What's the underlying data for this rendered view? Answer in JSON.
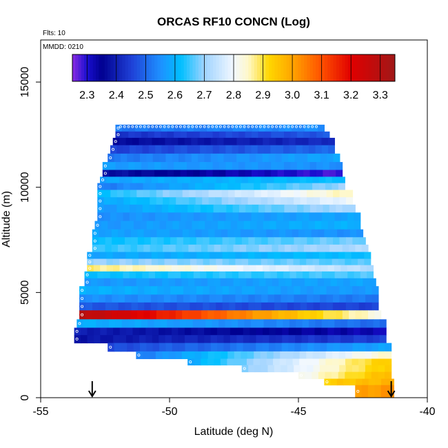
{
  "chart_data": {
    "type": "heatmap",
    "title": "ORCAS RF10 CONCN (Log)",
    "flights_note": "Flts: 10",
    "date_note": "MMDD: 0210",
    "xlabel": "Latitude (deg N)",
    "ylabel": "Altitude (m)",
    "xlim": [
      -55,
      -40
    ],
    "ylim": [
      0,
      17000
    ],
    "xticks": [
      -55,
      -50,
      -45,
      -40
    ],
    "yticks": [
      0,
      5000,
      10000,
      15000
    ],
    "xtick_labels": [
      "-55",
      "-50",
      "-45",
      "-40"
    ],
    "ytick_labels": [
      "0",
      "5000",
      "10000",
      "15000"
    ],
    "colorbar": {
      "min": 2.25,
      "max": 3.35,
      "ticks": [
        2.3,
        2.4,
        2.5,
        2.6,
        2.7,
        2.8,
        2.9,
        3.0,
        3.1,
        3.2,
        3.3
      ],
      "tick_labels": [
        "2.3",
        "2.4",
        "2.5",
        "2.6",
        "2.7",
        "2.8",
        "2.9",
        "3.0",
        "3.1",
        "3.2",
        "3.3"
      ],
      "stops": [
        {
          "v": 2.25,
          "color": "#8a2be2"
        },
        {
          "v": 2.3,
          "color": "#1a0fd0"
        },
        {
          "v": 2.35,
          "color": "#000090"
        },
        {
          "v": 2.45,
          "color": "#1f3fd6"
        },
        {
          "v": 2.55,
          "color": "#1e90ff"
        },
        {
          "v": 2.62,
          "color": "#00bfff"
        },
        {
          "v": 2.7,
          "color": "#9fd3ff"
        },
        {
          "v": 2.8,
          "color": "#f2f8ff"
        },
        {
          "v": 2.85,
          "color": "#fff8c8"
        },
        {
          "v": 2.92,
          "color": "#ffd700"
        },
        {
          "v": 3.0,
          "color": "#ffa500"
        },
        {
          "v": 3.1,
          "color": "#ff5000"
        },
        {
          "v": 3.2,
          "color": "#e00000"
        },
        {
          "v": 3.35,
          "color": "#a01818"
        }
      ]
    },
    "rows": [
      {
        "alt": 12800,
        "lat0": -52.1,
        "lat1": -44.0,
        "v0": 2.52,
        "v1": 2.55
      },
      {
        "alt": 12500,
        "lat0": -52.1,
        "lat1": -43.8,
        "v0": 2.43,
        "v1": 2.48
      },
      {
        "alt": 12200,
        "lat0": -52.2,
        "lat1": -43.6,
        "v0": 2.36,
        "v1": 2.42
      },
      {
        "alt": 11800,
        "lat0": -52.3,
        "lat1": -43.6,
        "v0": 2.45,
        "v1": 2.5
      },
      {
        "alt": 11400,
        "lat0": -52.4,
        "lat1": -43.4,
        "v0": 2.52,
        "v1": 2.58
      },
      {
        "alt": 11000,
        "lat0": -52.6,
        "lat1": -43.3,
        "v0": 2.57,
        "v1": 2.55
      },
      {
        "alt": 10650,
        "lat0": -52.6,
        "lat1": -43.3,
        "v0": 2.38,
        "v1": 2.28
      },
      {
        "alt": 10350,
        "lat0": -52.7,
        "lat1": -43.2,
        "v0": 2.58,
        "v1": 2.62
      },
      {
        "alt": 10050,
        "lat0": -52.8,
        "lat1": -43.2,
        "v0": 2.52,
        "v1": 2.7
      },
      {
        "alt": 9700,
        "lat0": -52.8,
        "lat1": -42.9,
        "v0": 2.62,
        "v1": 2.86
      },
      {
        "alt": 9350,
        "lat0": -52.8,
        "lat1": -42.9,
        "v0": 2.58,
        "v1": 2.8
      },
      {
        "alt": 9000,
        "lat0": -52.8,
        "lat1": -42.8,
        "v0": 2.56,
        "v1": 2.72
      },
      {
        "alt": 8600,
        "lat0": -52.8,
        "lat1": -42.6,
        "v0": 2.55,
        "v1": 2.58
      },
      {
        "alt": 8200,
        "lat0": -52.9,
        "lat1": -42.6,
        "v0": 2.56,
        "v1": 2.6
      },
      {
        "alt": 7800,
        "lat0": -53.0,
        "lat1": -42.5,
        "v0": 2.58,
        "v1": 2.55
      },
      {
        "alt": 7450,
        "lat0": -53.0,
        "lat1": -42.4,
        "v0": 2.62,
        "v1": 2.68
      },
      {
        "alt": 7100,
        "lat0": -53.0,
        "lat1": -42.3,
        "v0": 2.64,
        "v1": 2.72
      },
      {
        "alt": 6750,
        "lat0": -53.2,
        "lat1": -42.2,
        "v0": 2.58,
        "v1": 2.62
      },
      {
        "alt": 6450,
        "lat0": -53.2,
        "lat1": -42.2,
        "v0": 2.7,
        "v1": 2.66
      },
      {
        "alt": 6150,
        "lat0": -53.2,
        "lat1": -42.1,
        "v0": 2.88,
        "v1": 2.72
      },
      {
        "alt": 5850,
        "lat0": -53.3,
        "lat1": -42.1,
        "v0": 2.62,
        "v1": 2.66
      },
      {
        "alt": 5500,
        "lat0": -53.3,
        "lat1": -42.0,
        "v0": 2.56,
        "v1": 2.58
      },
      {
        "alt": 5100,
        "lat0": -53.5,
        "lat1": -41.9,
        "v0": 2.6,
        "v1": 2.56
      },
      {
        "alt": 4700,
        "lat0": -53.5,
        "lat1": -41.9,
        "v0": 2.55,
        "v1": 2.52
      },
      {
        "alt": 4350,
        "lat0": -53.5,
        "lat1": -41.9,
        "v0": 2.48,
        "v1": 2.45
      },
      {
        "alt": 3950,
        "lat0": -53.5,
        "lat1": -41.8,
        "v0": 3.3,
        "v1": 2.82
      },
      {
        "alt": 3500,
        "lat0": -53.6,
        "lat1": -41.6,
        "v0": 2.6,
        "v1": 2.5
      },
      {
        "alt": 3150,
        "lat0": -53.7,
        "lat1": -41.6,
        "v0": 2.4,
        "v1": 2.32
      },
      {
        "alt": 2800,
        "lat0": -53.7,
        "lat1": -41.6,
        "v0": 2.38,
        "v1": 2.45
      },
      {
        "alt": 2400,
        "lat0": -52.4,
        "lat1": -41.4,
        "v0": 2.46,
        "v1": 2.58
      },
      {
        "alt": 2000,
        "lat0": -51.3,
        "lat1": -41.4,
        "v0": 2.52,
        "v1": 2.85
      },
      {
        "alt": 1700,
        "lat0": -49.3,
        "lat1": -41.4,
        "v0": 2.58,
        "v1": 2.95
      },
      {
        "alt": 1400,
        "lat0": -47.2,
        "lat1": -41.4,
        "v0": 2.68,
        "v1": 2.95
      },
      {
        "alt": 1050,
        "lat0": -45.0,
        "lat1": -41.4,
        "v0": 2.8,
        "v1": 2.98
      },
      {
        "alt": 750,
        "lat0": -44.0,
        "lat1": -41.3,
        "v0": 2.93,
        "v1": 2.98
      },
      {
        "alt": 450,
        "lat0": -42.8,
        "lat1": -41.3,
        "v0": 3.0,
        "v1": 3.02
      }
    ],
    "markers": [
      {
        "lat": -53.0,
        "alt": 0
      },
      {
        "lat": -41.4,
        "alt": 0
      }
    ]
  }
}
